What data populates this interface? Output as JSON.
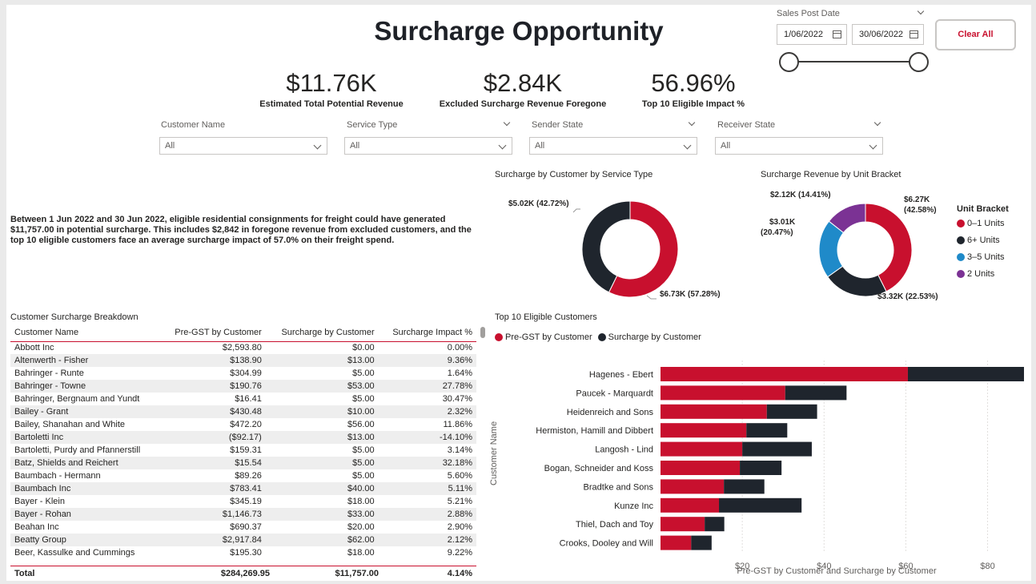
{
  "title": "Surcharge Opportunity",
  "colors": {
    "red": "#c8102e",
    "dark": "#1f252d",
    "blue": "#1f8ac9",
    "purple": "#7b3294",
    "accent": "#c8102e"
  },
  "date_slicer": {
    "label": "Sales Post Date",
    "start": "1/06/2022",
    "end": "30/06/2022",
    "start_fraction": 0.0,
    "end_fraction": 1.0
  },
  "clear_all": "Clear All",
  "kpis": [
    {
      "value": "$11.76K",
      "label": "Estimated Total Potential Revenue"
    },
    {
      "value": "$2.84K",
      "label": "Excluded Surcharge Revenue Foregone"
    },
    {
      "value": "56.96%",
      "label": "Top 10 Eligible Impact %"
    }
  ],
  "slicers": [
    {
      "label": "Customer Name",
      "value": "All"
    },
    {
      "label": "Service Type",
      "value": "All"
    },
    {
      "label": "Sender State",
      "value": "All"
    },
    {
      "label": "Receiver State",
      "value": "All"
    }
  ],
  "narrative": "Between 1 Jun 2022 and 30 Jun 2022, eligible residential consignments for freight could have generated $11,757.00 in potential surcharge. This includes $2,842 in foregone revenue from excluded customers, and the top 10 eligible customers face an average surcharge impact of 57.0% on their freight spend.",
  "table": {
    "title": "Customer Surcharge Breakdown",
    "columns": [
      "Customer Name",
      "Pre-GST by Customer",
      "Surcharge by Customer",
      "Surcharge Impact %"
    ],
    "rows": [
      [
        "Abbott Inc",
        "$2,593.80",
        "$0.00",
        "0.00%"
      ],
      [
        "Altenwerth - Fisher",
        "$138.90",
        "$13.00",
        "9.36%"
      ],
      [
        "Bahringer - Runte",
        "$304.99",
        "$5.00",
        "1.64%"
      ],
      [
        "Bahringer - Towne",
        "$190.76",
        "$53.00",
        "27.78%"
      ],
      [
        "Bahringer, Bergnaum and Yundt",
        "$16.41",
        "$5.00",
        "30.47%"
      ],
      [
        "Bailey - Grant",
        "$430.48",
        "$10.00",
        "2.32%"
      ],
      [
        "Bailey, Shanahan and White",
        "$472.20",
        "$56.00",
        "11.86%"
      ],
      [
        "Bartoletti Inc",
        "($92.17)",
        "$13.00",
        "-14.10%"
      ],
      [
        "Bartoletti, Purdy and Pfannerstill",
        "$159.31",
        "$5.00",
        "3.14%"
      ],
      [
        "Batz, Shields and Reichert",
        "$15.54",
        "$5.00",
        "32.18%"
      ],
      [
        "Baumbach - Hermann",
        "$89.26",
        "$5.00",
        "5.60%"
      ],
      [
        "Baumbach Inc",
        "$783.41",
        "$40.00",
        "5.11%"
      ],
      [
        "Bayer - Klein",
        "$345.19",
        "$18.00",
        "5.21%"
      ],
      [
        "Bayer - Rohan",
        "$1,146.73",
        "$33.00",
        "2.88%"
      ],
      [
        "Beahan Inc",
        "$690.37",
        "$20.00",
        "2.90%"
      ],
      [
        "Beatty Group",
        "$2,917.84",
        "$62.00",
        "2.12%"
      ],
      [
        "Beer, Kassulke and Cummings",
        "$195.30",
        "$18.00",
        "9.22%"
      ]
    ],
    "total": [
      "Total",
      "$284,269.95",
      "$11,757.00",
      "4.14%"
    ]
  },
  "donut1": {
    "title": "Surcharge by Customer by Service Type",
    "labels": [
      "$6.73K (57.28%)",
      "$5.02K (42.72%)"
    ],
    "chart_data": {
      "type": "pie",
      "title": "Surcharge by Customer by Service Type",
      "values": [
        6.73,
        5.02
      ],
      "percents": [
        57.28,
        42.72
      ],
      "series_colors": [
        "#c8102e",
        "#1f252d"
      ]
    }
  },
  "donut2": {
    "title": "Surcharge Revenue by Unit Bracket",
    "labels": [
      "$6.27K",
      "(42.58%)",
      "$3.32K (22.53%)",
      "$3.01K",
      "(20.47%)",
      "$2.12K (14.41%)"
    ],
    "legend_title": "Unit Bracket",
    "legend": [
      "0–1 Units",
      "6+ Units",
      "3–5 Units",
      "2 Units"
    ],
    "chart_data": {
      "type": "pie",
      "title": "Surcharge Revenue by Unit Bracket",
      "categories": [
        "0–1 Units",
        "6+ Units",
        "3–5 Units",
        "2 Units"
      ],
      "values": [
        6.27,
        3.32,
        3.01,
        2.12
      ],
      "percents": [
        42.58,
        22.53,
        20.47,
        14.41
      ],
      "series_colors": [
        "#c8102e",
        "#1f252d",
        "#1f8ac9",
        "#7b3294"
      ]
    }
  },
  "bar": {
    "title": "Top 10 Eligible Customers",
    "legend": [
      "Pre-GST by Customer",
      "Surcharge by Customer"
    ],
    "ylabel": "Customer Name",
    "xlabel": "Pre-GST by Customer and Surcharge by Customer",
    "chart_data": {
      "type": "bar",
      "orientation": "horizontal",
      "stacked": true,
      "categories": [
        "Hagenes - Ebert",
        "Paucek - Marquardt",
        "Heidenreich and Sons",
        "Hermiston, Hamill and Dibbert",
        "Langosh - Lind",
        "Bogan, Schneider and Koss",
        "Bradtke and Sons",
        "Kunze Inc",
        "Thiel, Dach and Toy",
        "Crooks, Dooley and Will"
      ],
      "series": [
        {
          "name": "Pre-GST by Customer",
          "values": [
            60.5,
            30.5,
            26,
            21,
            20,
            19.4,
            15.5,
            14.3,
            10.8,
            7.5
          ]
        },
        {
          "name": "Surcharge by Customer",
          "values": [
            28.4,
            15.0,
            12.3,
            10.0,
            17.0,
            10.2,
            9.9,
            20.2,
            4.8,
            5.0
          ]
        }
      ],
      "xticks": [
        "$20",
        "$40",
        "$60",
        "$80"
      ],
      "xtick_values": [
        20,
        40,
        60,
        80
      ],
      "xlim": [
        0,
        88.9
      ]
    }
  }
}
